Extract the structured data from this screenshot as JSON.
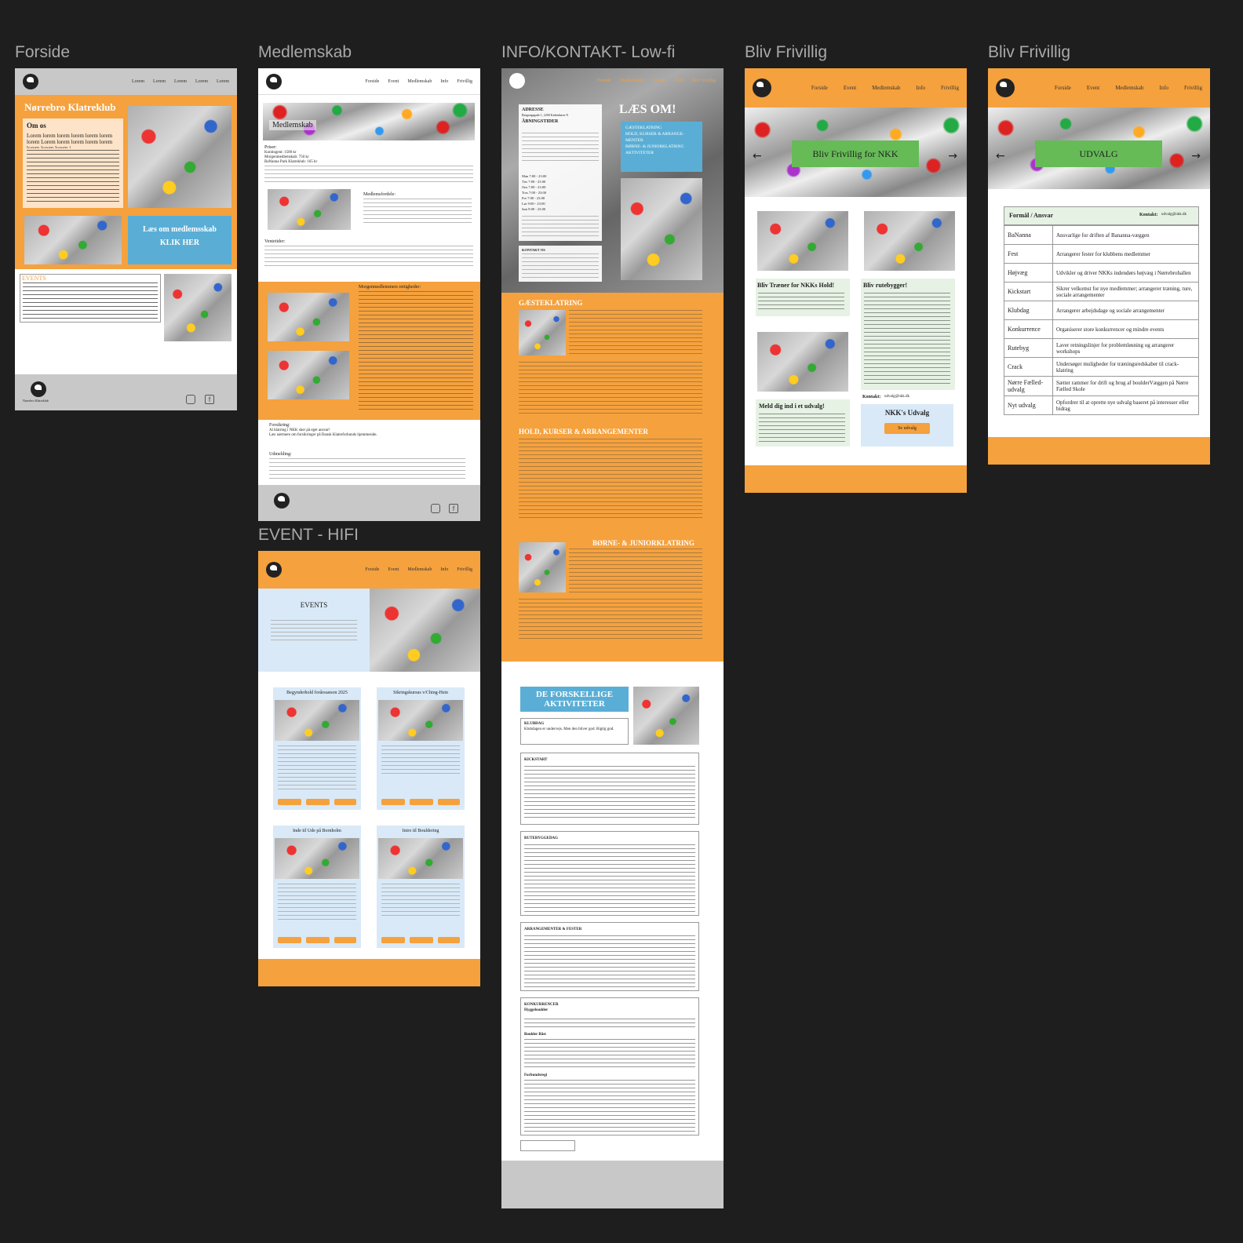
{
  "frames": {
    "forside": "Forside",
    "medlemskab": "Medlemskab",
    "info": "INFO/KONTAKT- Low-fi",
    "frivillig1": "Bliv Frivillig",
    "frivillig2": "Bliv Frivillig",
    "event": "EVENT - HIFI"
  },
  "colors": {
    "accent": "#f5a13d",
    "blue": "#5aaed6",
    "green": "#66bb57",
    "lightblue": "#d9e9f7"
  },
  "forside": {
    "nav": [
      "Lorem",
      "Lorem",
      "Lorem",
      "Lorem",
      "Lorem"
    ],
    "title": "Nørrebro Klatreklub",
    "om_os": "Om os",
    "om_text": "Lorem lorem lorem lorem lorem lorem lorem Lorem lorem lorem lorem lorem lorem lorem lorem i",
    "read_more": "Læs om medlemsskab",
    "click": "KLIK HER",
    "events": "EVENTS",
    "logo_text": "Nørrebro Klatreklub"
  },
  "medlemskab": {
    "nav": [
      "Forside",
      "Event",
      "Medlemskab",
      "Info",
      "Frivillig"
    ],
    "hero": "Medlemskab",
    "priser": "Priser:",
    "prices": [
      "Kontingent: 1500 kr",
      "Morgenmedlemskab: 750 kr",
      "BaNanna Park Klatreklub: 165 kr"
    ],
    "fordele": "Medlemsfordele:",
    "ventetid": "Ventetider:",
    "morgen": "Morgenmedlemmers rettigheder:",
    "forsikring": "Forsikring:",
    "ins_text": "Al klatring i NKK sker på eget ansvar!",
    "ins_text2": "Læs nærmere om forsikringer på Dansk Klatreforbunds hjemmeside.",
    "udmeld": "Udmelding:"
  },
  "info": {
    "nav": [
      "Forside",
      "Medlemskab",
      "Events",
      "FAQ",
      "Bliv frivillig"
    ],
    "adresse": "ADRESSE",
    "adresse_val": "Rørgangsgade 1, 2200 København N",
    "aabning": "ÅBNINGSTIDER",
    "hours": [
      "Man 7:00 - 23:00",
      "Tirs 7:00 - 23:00",
      "Ons 7:00 - 23:00",
      "Tors 7:00 - 23:00",
      "Fre 7:00 - 23:00",
      "Lør 9:00 - 23:00",
      "Søn 9:00 - 23:00"
    ],
    "kontakt": "KONTAKT OS",
    "laes_om": "LÆS OM!",
    "laes_items": [
      "GÆSTEKLATRING",
      "HOLD, KURSER & ARRANGE-MENTER",
      "BØRNE- & JUNIORKLATRING",
      "AKTIVITETER"
    ],
    "gaest": "GÆSTEKLATRING",
    "hold": "HOLD, KURSER & ARRANGEMENTER",
    "boerne": "BØRNE- & JUNIORKLATRING",
    "akt_title": "DE FORSKELLIGE AKTIVITETER",
    "klubdag": "KLUBDAG",
    "klubdag_text": "Klubdagen er undervejs. Men den bliver god. Rigtig god.",
    "kickstart": "KICKSTART",
    "rutebyg": "RUTEBYGGEDAG",
    "arr": "ARRANGEMENTER & FESTER",
    "konk": "KONKURRENCER",
    "konk_sub": [
      "Hyggeboulder",
      "Boulder Båst",
      "Forbundsregi"
    ]
  },
  "friv1": {
    "nav": [
      "Forside",
      "Event",
      "Medlemskab",
      "Info",
      "Frivillig"
    ],
    "hero": "Bliv Frivillig for NKK",
    "c1": "Bliv Træner for NKKs Hold!",
    "c2": "Bliv rutebygger!",
    "c3": "Meld dig ind i et udvalg!",
    "kontakt": "Kontakt:",
    "kontakt_val": "udvalg@nkk.dk",
    "udvalg": "NKK's Udvalg",
    "se": "Se udvalg"
  },
  "friv2": {
    "nav": [
      "Forside",
      "Event",
      "Medlemskab",
      "Info",
      "Frivillig"
    ],
    "hero": "UDVALG",
    "head": "Formål / Ansvar",
    "kontakt": "Kontakt:",
    "kontakt_val": "udvalg@nkk.dk",
    "rows": [
      [
        "BaNanna",
        "Ansvarlige for driften af Bananna-væggen"
      ],
      [
        "Fest",
        "Arrangerer fester for klubbens medlemmer"
      ],
      [
        "Højvæg",
        "Udvikler og driver NKKs indendørs højvæg i Nørrebrohallen"
      ],
      [
        "Kickstart",
        "Sikrer velkomst for nye medlemmer; arrangerer træning, ture, sociale arrangementer"
      ],
      [
        "Klubdag",
        "Arrangerer arbejdsdage og sociale arrangementer"
      ],
      [
        "Konkurrence",
        "Organiserer store konkurrencer og mindre events"
      ],
      [
        "Rutebyg",
        "Laver retningslinjer for problemløsning og arrangerer workshops"
      ],
      [
        "Crack",
        "Undersøger muligheder for træningsredskaber til crack-klatring"
      ],
      [
        "Nørre Fælled-udvalg",
        "Sætter rammer for drift og brug af boulderVæggen på Nørre Fælled Skole"
      ],
      [
        "Nyt udvalg",
        "Opfordrer til at oprette nye udvalg baseret på interesser eller bidrag"
      ]
    ]
  },
  "event": {
    "nav": [
      "Forside",
      "Event",
      "Medlemskab",
      "Info",
      "Frivillig"
    ],
    "title": "EVENTS",
    "cards": [
      "Begynderhold forårssæson 2025",
      "Sikringskursus v/Ching-Hsin",
      "Inde til Ude på Bornholm",
      "Intro til Bouldering"
    ]
  }
}
